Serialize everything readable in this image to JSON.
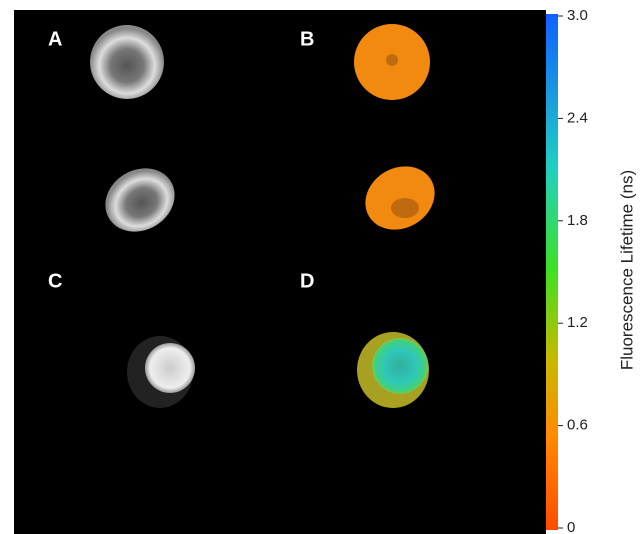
{
  "chart_data": {
    "type": "colorbar-image",
    "panels": [
      "A",
      "B",
      "C",
      "D"
    ],
    "colorbar_label": "Fluorescence Lifetime (ns)",
    "ylim": [
      0,
      3
    ],
    "yticks": [
      0,
      0.6,
      1.2,
      1.8,
      2.4,
      {
        "value": 3,
        "label": "3.0"
      }
    ]
  }
}
